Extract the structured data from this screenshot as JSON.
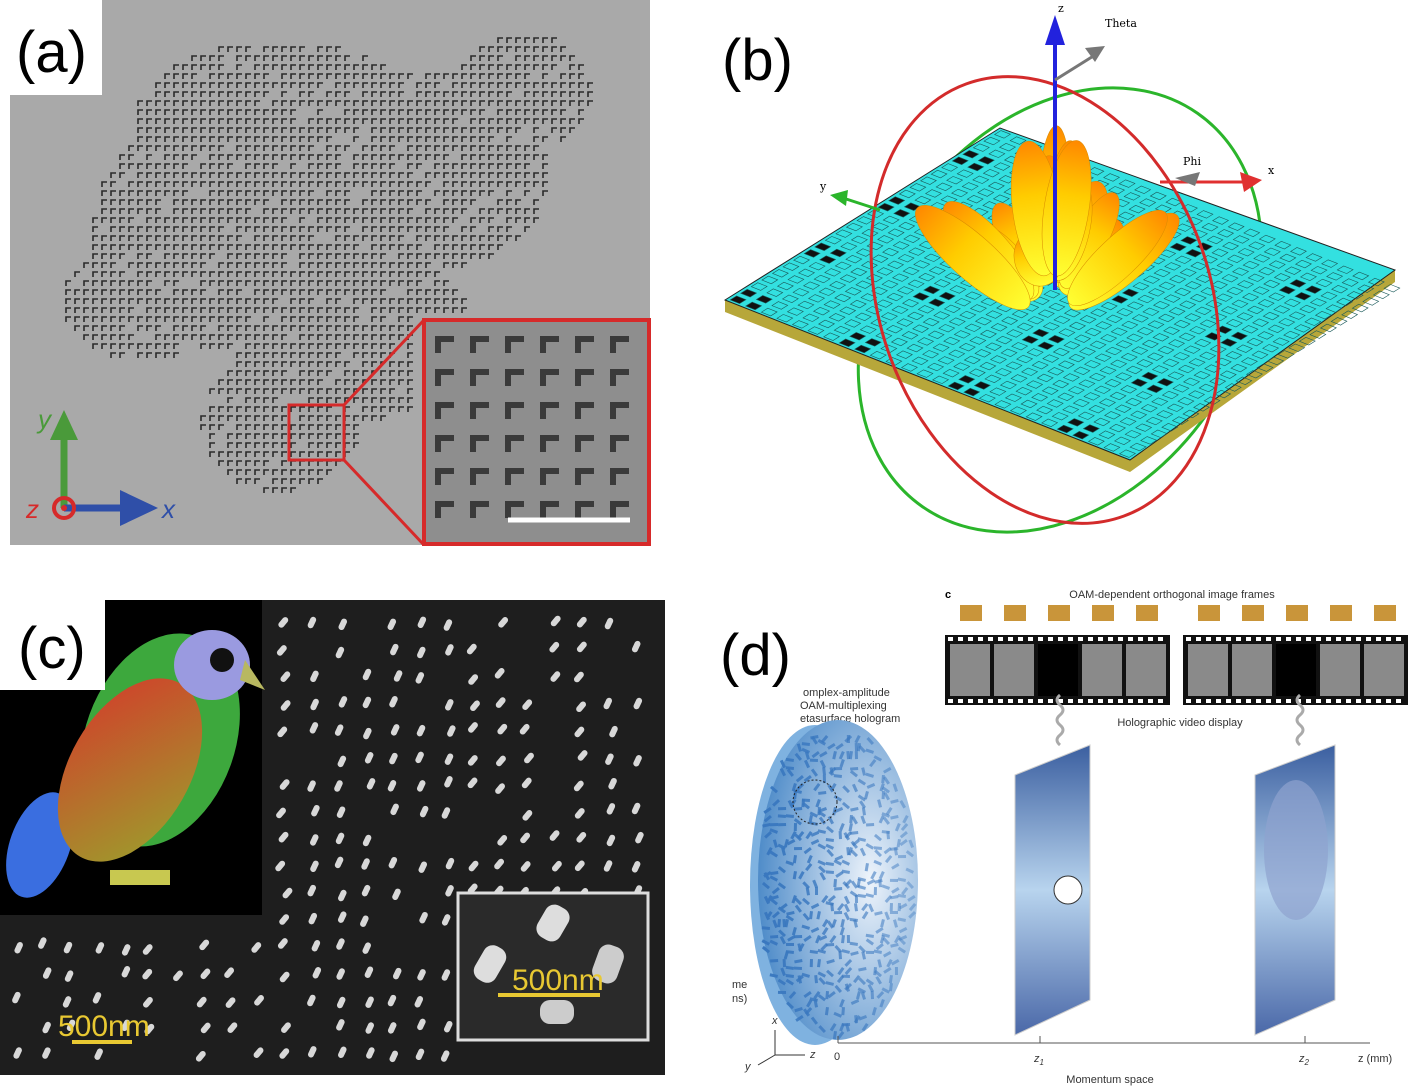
{
  "panel_a": {
    "label": "(a)",
    "axis_y": "y",
    "axis_z": "z",
    "axis_x": "x"
  },
  "panel_b": {
    "label": "(b)",
    "axis_z": "z",
    "theta": "Theta",
    "phi": "Phi",
    "axis_x": "x",
    "axis_y": "y"
  },
  "panel_c": {
    "label": "(c)",
    "scale_main": "500nm",
    "scale_inset": "500nm"
  },
  "panel_d": {
    "label": "(d)",
    "sub_label": "c",
    "frames_title": "OAM-dependent orthogonal image frames",
    "hologram_lines": [
      "omplex-amplitude",
      "OAM-multiplexing",
      "etasurface hologram"
    ],
    "display_label": "Holographic video display",
    "cut_lines": [
      "me",
      "ns)"
    ],
    "axis_x": "x",
    "axis_y": "y",
    "axis_z": "z",
    "ticks": [
      {
        "base": "0"
      },
      {
        "base": "z",
        "sub": "1"
      },
      {
        "base": "z",
        "sub": "2"
      }
    ],
    "z_axis_label": "z (mm)",
    "x_axis_label": "Momentum space"
  }
}
